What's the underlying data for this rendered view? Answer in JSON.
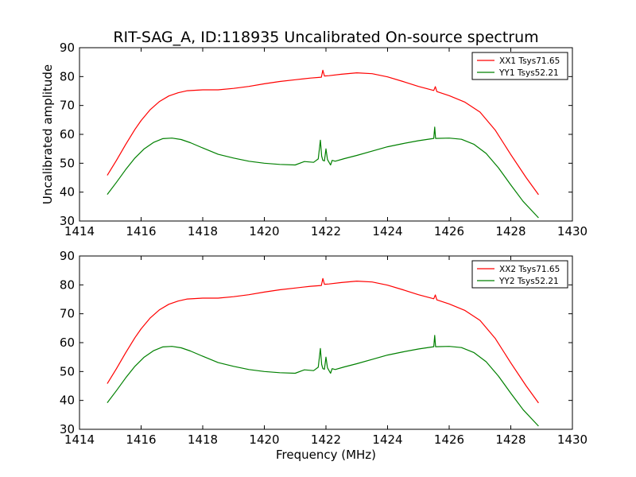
{
  "figure": {
    "title": "RIT-SAG_A, ID:118935 Uncalibrated On-source spectrum",
    "xlabel": "Frequency (MHz)"
  },
  "chart_data": [
    {
      "type": "line",
      "ylabel": "Uncalibrated amplitude",
      "xlabel": "",
      "xlim": [
        1414,
        1430
      ],
      "ylim": [
        30,
        90
      ],
      "xticks": [
        1414,
        1416,
        1418,
        1420,
        1422,
        1424,
        1426,
        1428,
        1430
      ],
      "yticks": [
        30,
        40,
        50,
        60,
        70,
        80,
        90
      ],
      "grid": false,
      "legend_position": "top-right",
      "series": [
        {
          "name": "XX1 Tsys71.65",
          "color": "#ff0000",
          "x": [
            1414.9,
            1415.2,
            1415.5,
            1415.8,
            1416.0,
            1416.3,
            1416.6,
            1416.9,
            1417.2,
            1417.5,
            1418.0,
            1418.5,
            1419.0,
            1419.5,
            1420.0,
            1420.5,
            1421.0,
            1421.5,
            1421.85,
            1421.9,
            1421.95,
            1422.1,
            1422.5,
            1423.0,
            1423.5,
            1424.0,
            1424.5,
            1425.0,
            1425.5,
            1425.55,
            1425.6,
            1426.0,
            1426.5,
            1427.0,
            1427.5,
            1428.0,
            1428.5,
            1428.9
          ],
          "y": [
            45.8,
            51.0,
            56.5,
            61.7,
            64.8,
            68.6,
            71.4,
            73.3,
            74.4,
            75.1,
            75.4,
            75.4,
            75.9,
            76.6,
            77.5,
            78.3,
            78.9,
            79.5,
            79.8,
            82.2,
            80.2,
            80.3,
            80.8,
            81.3,
            81.0,
            79.9,
            78.3,
            76.6,
            75.2,
            76.5,
            74.8,
            73.4,
            71.2,
            67.7,
            61.4,
            53.0,
            45.0,
            39.1
          ]
        },
        {
          "name": "YY1 Tsys52.21",
          "color": "#008000",
          "x": [
            1414.9,
            1415.2,
            1415.5,
            1415.8,
            1416.1,
            1416.4,
            1416.7,
            1417.0,
            1417.3,
            1417.6,
            1418.0,
            1418.5,
            1419.0,
            1419.5,
            1420.0,
            1420.5,
            1421.0,
            1421.3,
            1421.6,
            1421.75,
            1421.82,
            1421.86,
            1421.9,
            1421.95,
            1422.0,
            1422.05,
            1422.1,
            1422.15,
            1422.2,
            1422.3,
            1422.6,
            1423.0,
            1423.5,
            1424.0,
            1424.5,
            1425.0,
            1425.5,
            1425.53,
            1425.56,
            1426.0,
            1426.4,
            1426.8,
            1427.2,
            1427.6,
            1428.0,
            1428.4,
            1428.9
          ],
          "y": [
            39.2,
            43.4,
            47.8,
            51.8,
            55.0,
            57.2,
            58.5,
            58.7,
            58.2,
            57.1,
            55.3,
            53.1,
            51.8,
            50.7,
            50.0,
            49.6,
            49.4,
            50.6,
            50.3,
            51.5,
            58.0,
            52.5,
            51.0,
            50.8,
            55.0,
            51.3,
            50.3,
            49.4,
            51.0,
            50.7,
            51.6,
            52.7,
            54.2,
            55.7,
            56.8,
            57.8,
            58.6,
            62.5,
            58.6,
            58.7,
            58.3,
            56.6,
            53.4,
            48.4,
            42.5,
            36.8,
            31.1
          ]
        }
      ]
    },
    {
      "type": "line",
      "ylabel": "",
      "xlabel": "Frequency (MHz)",
      "xlim": [
        1414,
        1430
      ],
      "ylim": [
        30,
        90
      ],
      "xticks": [
        1414,
        1416,
        1418,
        1420,
        1422,
        1424,
        1426,
        1428,
        1430
      ],
      "yticks": [
        30,
        40,
        50,
        60,
        70,
        80,
        90
      ],
      "grid": false,
      "legend_position": "top-right",
      "series": [
        {
          "name": "XX2 Tsys71.65",
          "color": "#ff0000",
          "x": [
            1414.9,
            1415.2,
            1415.5,
            1415.8,
            1416.0,
            1416.3,
            1416.6,
            1416.9,
            1417.2,
            1417.5,
            1418.0,
            1418.5,
            1419.0,
            1419.5,
            1420.0,
            1420.5,
            1421.0,
            1421.5,
            1421.85,
            1421.9,
            1421.95,
            1422.1,
            1422.5,
            1423.0,
            1423.5,
            1424.0,
            1424.5,
            1425.0,
            1425.5,
            1425.55,
            1425.6,
            1426.0,
            1426.5,
            1427.0,
            1427.5,
            1428.0,
            1428.5,
            1428.9
          ],
          "y": [
            45.8,
            51.0,
            56.5,
            61.7,
            64.8,
            68.6,
            71.4,
            73.3,
            74.4,
            75.1,
            75.4,
            75.4,
            75.9,
            76.6,
            77.5,
            78.3,
            78.9,
            79.5,
            79.8,
            82.2,
            80.2,
            80.3,
            80.8,
            81.3,
            81.0,
            79.9,
            78.3,
            76.6,
            75.2,
            76.5,
            74.8,
            73.4,
            71.2,
            67.7,
            61.4,
            53.0,
            45.0,
            39.1
          ]
        },
        {
          "name": "YY2 Tsys52.21",
          "color": "#008000",
          "x": [
            1414.9,
            1415.2,
            1415.5,
            1415.8,
            1416.1,
            1416.4,
            1416.7,
            1417.0,
            1417.3,
            1417.6,
            1418.0,
            1418.5,
            1419.0,
            1419.5,
            1420.0,
            1420.5,
            1421.0,
            1421.3,
            1421.6,
            1421.75,
            1421.82,
            1421.86,
            1421.9,
            1421.95,
            1422.0,
            1422.05,
            1422.1,
            1422.15,
            1422.2,
            1422.3,
            1422.6,
            1423.0,
            1423.5,
            1424.0,
            1424.5,
            1425.0,
            1425.5,
            1425.53,
            1425.56,
            1426.0,
            1426.4,
            1426.8,
            1427.2,
            1427.6,
            1428.0,
            1428.4,
            1428.9
          ],
          "y": [
            39.2,
            43.4,
            47.8,
            51.8,
            55.0,
            57.2,
            58.5,
            58.7,
            58.2,
            57.1,
            55.3,
            53.1,
            51.8,
            50.7,
            50.0,
            49.6,
            49.4,
            50.6,
            50.3,
            51.5,
            58.0,
            52.5,
            51.0,
            50.8,
            55.0,
            51.3,
            50.3,
            49.4,
            51.0,
            50.7,
            51.6,
            52.7,
            54.2,
            55.7,
            56.8,
            57.8,
            58.6,
            62.5,
            58.6,
            58.7,
            58.3,
            56.6,
            53.4,
            48.4,
            42.5,
            36.8,
            31.1
          ]
        }
      ]
    }
  ]
}
